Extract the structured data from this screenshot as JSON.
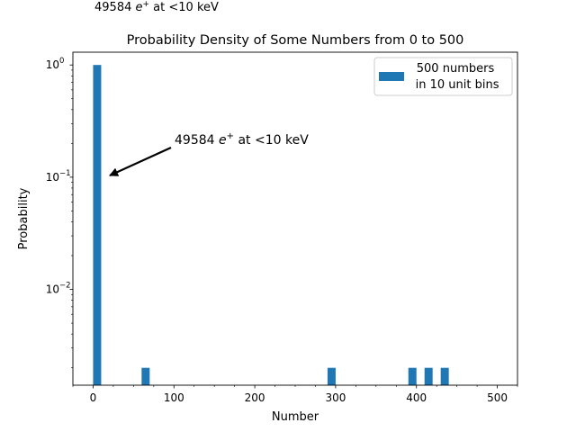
{
  "chart_data": {
    "type": "bar",
    "title": "Probability Density of Some Numbers from 0 to 500",
    "top_note": {
      "prefix": "49584 ",
      "symbol": "e",
      "sup": "+",
      "suffix": "  at <10 keV"
    },
    "annotation": {
      "prefix": "49584 ",
      "symbol": "e",
      "sup": "+",
      "suffix": "  at <10 keV",
      "arrow_target": [
        10,
        0.1
      ]
    },
    "xlabel": "Number",
    "ylabel": "Probability",
    "xlim": [
      -25,
      525
    ],
    "yscale": "log",
    "ylim": [
      0.0014,
      1.3
    ],
    "bin_width": 10,
    "xticks": [
      0,
      100,
      200,
      300,
      400,
      500
    ],
    "xtick_labels": [
      "0",
      "100",
      "200",
      "300",
      "400",
      "500"
    ],
    "yticks": [
      {
        "value": 1,
        "base": "10",
        "exp": "0"
      },
      {
        "value": 0.1,
        "base": "10",
        "exp": "−1"
      },
      {
        "value": 0.01,
        "base": "10",
        "exp": "−2"
      }
    ],
    "series": [
      {
        "name": "500 numbers\n in 10 unit bins",
        "color": "#1f77b4",
        "bins": [
          {
            "start": 0,
            "value": 1.0
          },
          {
            "start": 60,
            "value": 0.002
          },
          {
            "start": 290,
            "value": 0.002
          },
          {
            "start": 390,
            "value": 0.002
          },
          {
            "start": 410,
            "value": 0.002
          },
          {
            "start": 430,
            "value": 0.002
          }
        ]
      }
    ],
    "legend": {
      "position": "upper right",
      "lines": [
        "500 numbers",
        " in 10 unit bins"
      ]
    },
    "grid": false
  }
}
